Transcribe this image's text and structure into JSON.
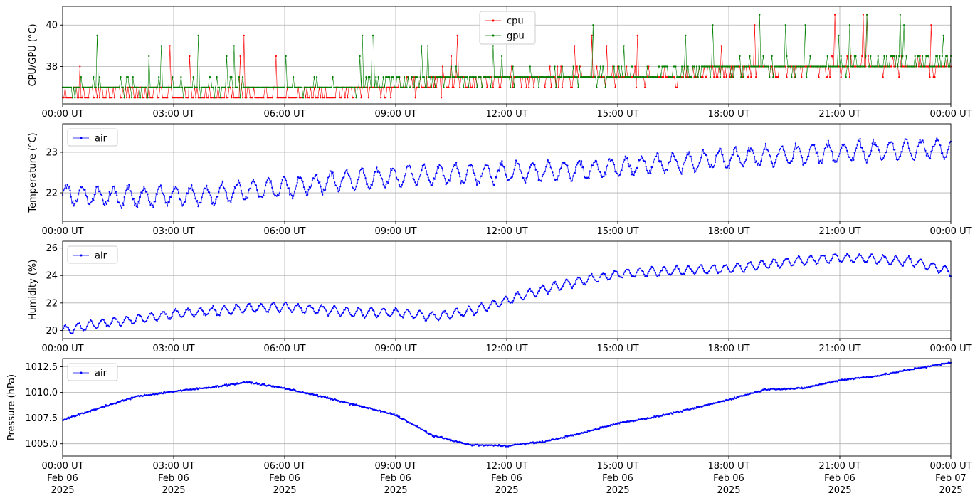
{
  "colors": {
    "cpu": "#ff0000",
    "gpu": "#008000",
    "air": "#0000ff"
  },
  "x_ticks": {
    "time": [
      "00:00 UT",
      "03:00 UT",
      "06:00 UT",
      "09:00 UT",
      "12:00 UT",
      "15:00 UT",
      "18:00 UT",
      "21:00 UT",
      "00:00 UT"
    ],
    "date": [
      "Feb 06",
      "Feb 06",
      "Feb 06",
      "Feb 06",
      "Feb 06",
      "Feb 06",
      "Feb 06",
      "Feb 06",
      "Feb 07"
    ],
    "year": [
      "2025",
      "2025",
      "2025",
      "2025",
      "2025",
      "2025",
      "2025",
      "2025",
      "2025"
    ]
  },
  "chart_data": [
    {
      "type": "line",
      "ylabel": "CPU/GPU (°C)",
      "xlim": [
        "2025-02-06 00:00",
        "2025-02-07 00:00"
      ],
      "ylim": [
        36.2,
        40.9
      ],
      "yticks": [
        38,
        40
      ],
      "ytick_labels": [
        "38",
        "40"
      ],
      "grid": true,
      "legend": "top-center",
      "series": [
        {
          "name": "cpu",
          "color": "#ff0000",
          "hours": [
            0,
            2,
            4,
            6,
            8,
            10,
            12,
            14,
            16,
            18,
            20,
            22,
            24
          ],
          "values": [
            36.6,
            36.7,
            36.6,
            36.6,
            36.8,
            37.2,
            37.4,
            37.5,
            37.5,
            37.8,
            37.9,
            38.0,
            38.0
          ]
        },
        {
          "name": "gpu",
          "color": "#008000",
          "hours": [
            0,
            2,
            4,
            6,
            8,
            10,
            12,
            14,
            16,
            18,
            20,
            22,
            24
          ],
          "values": [
            37.0,
            37.0,
            37.0,
            37.0,
            37.1,
            37.4,
            37.5,
            37.5,
            37.6,
            38.0,
            38.0,
            38.2,
            38.2
          ]
        }
      ]
    },
    {
      "type": "line",
      "ylabel": "Temperature (°C)",
      "xlim": [
        "2025-02-06 00:00",
        "2025-02-07 00:00"
      ],
      "ylim": [
        21.3,
        23.7
      ],
      "yticks": [
        22,
        23
      ],
      "ytick_labels": [
        "22",
        "23"
      ],
      "grid": true,
      "legend": "top-left",
      "series": [
        {
          "name": "air",
          "color": "#0000ff",
          "hours": [
            0,
            2,
            4,
            6,
            8,
            10,
            12,
            14,
            16,
            18,
            20,
            22,
            24
          ],
          "values": [
            21.95,
            21.9,
            21.95,
            22.15,
            22.35,
            22.45,
            22.5,
            22.55,
            22.7,
            22.85,
            22.95,
            23.05,
            23.1
          ]
        }
      ]
    },
    {
      "type": "line",
      "ylabel": "Humidity (%)",
      "xlim": [
        "2025-02-06 00:00",
        "2025-02-07 00:00"
      ],
      "ylim": [
        19.4,
        26.5
      ],
      "yticks": [
        20,
        22,
        24,
        26
      ],
      "ytick_labels": [
        "20",
        "22",
        "24",
        "26"
      ],
      "grid": true,
      "legend": "top-left",
      "series": [
        {
          "name": "air",
          "color": "#0000ff",
          "hours": [
            0,
            1,
            2,
            3,
            4,
            5,
            6,
            7,
            8,
            9,
            10,
            11,
            12,
            13,
            14,
            15,
            16,
            17,
            18,
            19,
            20,
            21,
            22,
            23,
            24
          ],
          "values": [
            20.0,
            20.5,
            20.8,
            21.2,
            21.4,
            21.6,
            21.7,
            21.5,
            21.3,
            21.3,
            21.0,
            21.4,
            22.2,
            23.0,
            23.6,
            24.1,
            24.3,
            24.4,
            24.5,
            24.8,
            25.1,
            25.3,
            25.2,
            25.0,
            24.3
          ]
        }
      ]
    },
    {
      "type": "line",
      "ylabel": "Pressure (hPa)",
      "xlim": [
        "2025-02-06 00:00",
        "2025-02-07 00:00"
      ],
      "ylim": [
        1003.8,
        1013.3
      ],
      "yticks": [
        1005.0,
        1007.5,
        1010.0,
        1012.5
      ],
      "ytick_labels": [
        "1005.0",
        "1007.5",
        "1010.0",
        "1012.5"
      ],
      "grid": true,
      "legend": "top-left",
      "series": [
        {
          "name": "air",
          "color": "#0000ff",
          "hours": [
            0,
            1,
            2,
            3,
            4,
            5,
            6,
            7,
            8,
            9,
            10,
            11,
            12,
            13,
            14,
            15,
            16,
            17,
            18,
            19,
            20,
            21,
            22,
            23,
            24
          ],
          "values": [
            1007.3,
            1008.5,
            1009.6,
            1010.1,
            1010.5,
            1011.0,
            1010.4,
            1009.6,
            1008.7,
            1007.8,
            1005.8,
            1004.9,
            1004.8,
            1005.2,
            1006.0,
            1007.0,
            1007.6,
            1008.4,
            1009.3,
            1010.3,
            1010.4,
            1011.2,
            1011.6,
            1012.3,
            1012.9
          ]
        }
      ]
    }
  ]
}
